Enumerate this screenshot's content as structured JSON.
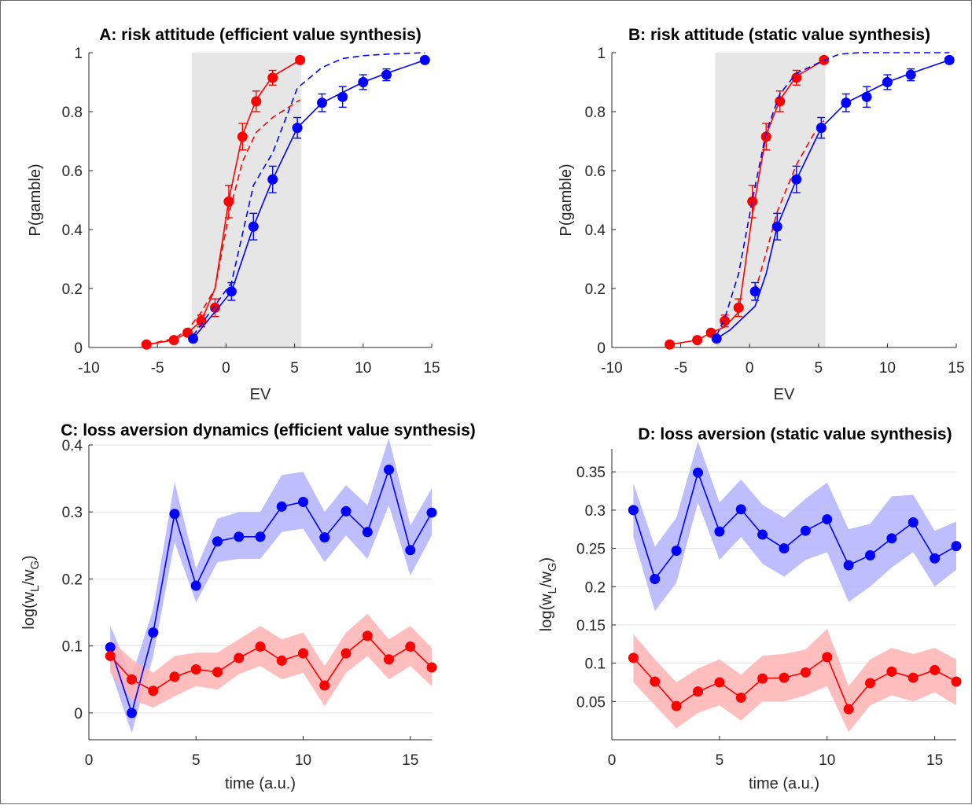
{
  "chart_data": [
    {
      "type": "line",
      "title": "A: risk attitude (efficient value synthesis)",
      "xlabel": "EV",
      "ylabel": "P(gamble)",
      "xlim": [
        -10,
        15
      ],
      "ylim": [
        0,
        1
      ],
      "xticks": [
        "-10",
        "-5",
        "0",
        "5",
        "10",
        "15"
      ],
      "yticks": [
        "0",
        "0.2",
        "0.4",
        "0.6",
        "0.8",
        "1"
      ],
      "shaded_region_x": [
        -2.5,
        5.5
      ],
      "colors": {
        "red": "#ff0000",
        "blue": "#0000ff",
        "shade": "#e6e6e6"
      },
      "series": [
        {
          "color": "red",
          "style": "data",
          "x": [
            -5.8,
            -3.8,
            -2.8,
            -1.8,
            -0.8,
            0.2,
            1.2,
            2.2,
            3.4,
            5.4
          ],
          "y": [
            0.01,
            0.025,
            0.05,
            0.09,
            0.135,
            0.495,
            0.715,
            0.835,
            0.915,
            0.975
          ],
          "err": [
            0,
            0,
            0.01,
            0.02,
            0.03,
            0.055,
            0.045,
            0.035,
            0.025,
            0.01
          ]
        },
        {
          "color": "red",
          "style": "solid",
          "x": [
            -5.8,
            -3.8,
            -2.8,
            -1.8,
            -0.8,
            -0.3,
            0.2,
            1.2,
            2.2,
            3.4,
            5.4
          ],
          "y": [
            0.01,
            0.025,
            0.05,
            0.09,
            0.2,
            0.35,
            0.5,
            0.72,
            0.84,
            0.92,
            0.975
          ]
        },
        {
          "color": "red",
          "style": "dashed",
          "x": [
            -5.8,
            -3.8,
            -2.8,
            -1.8,
            -0.8,
            0.2,
            1.2,
            2.2,
            3.4,
            5.4
          ],
          "y": [
            0.01,
            0.03,
            0.06,
            0.12,
            0.2,
            0.45,
            0.63,
            0.73,
            0.78,
            0.84
          ]
        },
        {
          "color": "blue",
          "style": "data",
          "x": [
            -2.4,
            0.4,
            2.0,
            3.4,
            5.2,
            7.0,
            8.5,
            10.0,
            11.7,
            14.5
          ],
          "y": [
            0.03,
            0.19,
            0.41,
            0.57,
            0.745,
            0.83,
            0.85,
            0.9,
            0.925,
            0.975
          ],
          "err": [
            0,
            0.03,
            0.045,
            0.045,
            0.035,
            0.03,
            0.035,
            0.025,
            0.02,
            0.01
          ]
        },
        {
          "color": "blue",
          "style": "solid",
          "x": [
            -2.4,
            0.4,
            2.0,
            3.4,
            5.2,
            7.0,
            8.5,
            10.0,
            11.7,
            14.5
          ],
          "y": [
            0.03,
            0.19,
            0.41,
            0.57,
            0.745,
            0.83,
            0.865,
            0.9,
            0.93,
            0.975
          ]
        },
        {
          "color": "blue",
          "style": "dashed",
          "x": [
            -2.4,
            0.4,
            2.0,
            3.4,
            5.2,
            7.0,
            8.5,
            10.0,
            11.7,
            14.5
          ],
          "y": [
            0.04,
            0.22,
            0.55,
            0.66,
            0.88,
            0.95,
            0.98,
            0.99,
            0.995,
            1.0
          ]
        }
      ]
    },
    {
      "type": "line",
      "title": "B: risk attitude (static value synthesis)",
      "xlabel": "EV",
      "ylabel": "P(gamble)",
      "xlim": [
        -10,
        15
      ],
      "ylim": [
        0,
        1
      ],
      "xticks": [
        "-10",
        "-5",
        "0",
        "5",
        "10",
        "15"
      ],
      "yticks": [
        "0",
        "0.2",
        "0.4",
        "0.6",
        "0.8",
        "1"
      ],
      "shaded_region_x": [
        -2.5,
        5.5
      ],
      "colors": {
        "red": "#ff0000",
        "blue": "#0000ff",
        "shade": "#e6e6e6"
      },
      "series": [
        {
          "color": "red",
          "style": "data",
          "x": [
            -5.8,
            -3.8,
            -2.8,
            -1.8,
            -0.8,
            0.2,
            1.2,
            2.2,
            3.4,
            5.4
          ],
          "y": [
            0.01,
            0.025,
            0.05,
            0.09,
            0.135,
            0.495,
            0.715,
            0.835,
            0.915,
            0.975
          ],
          "err": [
            0,
            0,
            0.01,
            0.02,
            0.03,
            0.055,
            0.045,
            0.035,
            0.025,
            0.01
          ]
        },
        {
          "color": "red",
          "style": "solid",
          "x": [
            -5.8,
            -3.8,
            -2.8,
            -1.8,
            -0.8,
            0.2,
            1.2,
            2.2,
            3.4,
            5.4
          ],
          "y": [
            0.01,
            0.025,
            0.05,
            0.07,
            0.12,
            0.45,
            0.72,
            0.84,
            0.92,
            0.975
          ]
        },
        {
          "color": "red",
          "style": "dashed",
          "x": [
            0.4,
            1.2,
            2.0,
            3.4,
            4.6,
            5.4
          ],
          "y": [
            0.19,
            0.32,
            0.46,
            0.62,
            0.72,
            0.77
          ]
        },
        {
          "color": "blue",
          "style": "data",
          "x": [
            -2.4,
            0.4,
            2.0,
            3.4,
            5.2,
            7.0,
            8.5,
            10.0,
            11.7,
            14.5
          ],
          "y": [
            0.03,
            0.19,
            0.41,
            0.57,
            0.745,
            0.83,
            0.85,
            0.9,
            0.925,
            0.975
          ],
          "err": [
            0,
            0.03,
            0.045,
            0.045,
            0.035,
            0.03,
            0.035,
            0.025,
            0.02,
            0.01
          ]
        },
        {
          "color": "blue",
          "style": "solid",
          "x": [
            -2.4,
            -1.4,
            0.4,
            1.2,
            2.0,
            3.4,
            5.2,
            7.0,
            8.5,
            10.0,
            11.7,
            14.5
          ],
          "y": [
            0.03,
            0.06,
            0.14,
            0.25,
            0.41,
            0.57,
            0.745,
            0.83,
            0.865,
            0.9,
            0.93,
            0.975
          ]
        },
        {
          "color": "blue",
          "style": "dashed",
          "x": [
            -2.4,
            -1.8,
            -0.8,
            0.2,
            1.2,
            2.2,
            3.4,
            5.2,
            6.5,
            8.0,
            14.5
          ],
          "y": [
            0.04,
            0.1,
            0.25,
            0.5,
            0.73,
            0.86,
            0.93,
            0.97,
            0.995,
            1.0,
            1.0
          ]
        }
      ]
    },
    {
      "type": "line",
      "title": "C: loss aversion dynamics (efficient value synthesis)",
      "xlabel": "time (a.u.)",
      "ylabel": "log(w_L/w_G)",
      "ylabel_parts": {
        "prefix": "log(w",
        "sub1": "L",
        "mid": "/w",
        "sub2": "G",
        "suffix": ")"
      },
      "xlim": [
        0,
        16
      ],
      "ylim": [
        -0.04,
        0.4
      ],
      "xticks": [
        "0",
        "5",
        "10",
        "15"
      ],
      "yticks": [
        "0",
        "0.1",
        "0.2",
        "0.3",
        "0.4"
      ],
      "grid": "y",
      "colors": {
        "red": "#ff0000",
        "blue": "#0000ff",
        "red_band": "#ffb3b3",
        "blue_band": "#b3b3ff"
      },
      "series": [
        {
          "color": "blue",
          "x": [
            1,
            2,
            3,
            4,
            5,
            6,
            7,
            8,
            9,
            10,
            11,
            12,
            13,
            14,
            15,
            16
          ],
          "y": [
            0.098,
            0.0,
            0.12,
            0.297,
            0.19,
            0.256,
            0.263,
            0.263,
            0.308,
            0.315,
            0.262,
            0.301,
            0.27,
            0.363,
            0.243,
            0.299
          ],
          "lower": [
            0.065,
            -0.03,
            0.085,
            0.255,
            0.165,
            0.225,
            0.23,
            0.23,
            0.27,
            0.275,
            0.225,
            0.265,
            0.23,
            0.31,
            0.205,
            0.265
          ],
          "upper": [
            0.13,
            0.055,
            0.155,
            0.345,
            0.215,
            0.29,
            0.3,
            0.3,
            0.355,
            0.36,
            0.3,
            0.34,
            0.31,
            0.41,
            0.28,
            0.335
          ]
        },
        {
          "color": "red",
          "x": [
            1,
            2,
            3,
            4,
            5,
            6,
            7,
            8,
            9,
            10,
            11,
            12,
            13,
            14,
            15,
            16
          ],
          "y": [
            0.085,
            0.05,
            0.033,
            0.054,
            0.065,
            0.061,
            0.082,
            0.099,
            0.078,
            0.089,
            0.041,
            0.089,
            0.115,
            0.08,
            0.099,
            0.068
          ],
          "lower": [
            0.06,
            0.02,
            0.008,
            0.025,
            0.04,
            0.035,
            0.058,
            0.07,
            0.05,
            0.06,
            0.01,
            0.06,
            0.085,
            0.05,
            0.07,
            0.04
          ],
          "upper": [
            0.11,
            0.08,
            0.06,
            0.085,
            0.09,
            0.09,
            0.11,
            0.13,
            0.11,
            0.12,
            0.07,
            0.12,
            0.148,
            0.11,
            0.13,
            0.097
          ]
        }
      ]
    },
    {
      "type": "line",
      "title": "D: loss aversion (static value synthesis)",
      "xlabel": "time (a.u.)",
      "ylabel": "log(w_L/w_G)",
      "ylabel_parts": {
        "prefix": "log(w",
        "sub1": "L",
        "mid": "/w",
        "sub2": "G",
        "suffix": ")"
      },
      "xlim": [
        0,
        16
      ],
      "ylim": [
        0,
        0.38
      ],
      "xticks": [
        "0",
        "5",
        "10",
        "15"
      ],
      "yticks": [
        "0.05",
        "0.1",
        "0.15",
        "0.2",
        "0.25",
        "0.3",
        "0.35"
      ],
      "grid": "y",
      "colors": {
        "red": "#ff0000",
        "blue": "#0000ff",
        "red_band": "#ffb3b3",
        "blue_band": "#b3b3ff"
      },
      "series": [
        {
          "color": "blue",
          "x": [
            1,
            2,
            3,
            4,
            5,
            6,
            7,
            8,
            9,
            10,
            11,
            12,
            13,
            14,
            15,
            16
          ],
          "y": [
            0.3,
            0.21,
            0.247,
            0.349,
            0.272,
            0.301,
            0.268,
            0.25,
            0.273,
            0.288,
            0.228,
            0.241,
            0.263,
            0.284,
            0.237,
            0.253
          ],
          "lower": [
            0.265,
            0.168,
            0.205,
            0.31,
            0.235,
            0.265,
            0.23,
            0.213,
            0.235,
            0.245,
            0.18,
            0.2,
            0.225,
            0.245,
            0.2,
            0.222
          ],
          "upper": [
            0.335,
            0.252,
            0.29,
            0.39,
            0.31,
            0.34,
            0.307,
            0.29,
            0.315,
            0.336,
            0.275,
            0.282,
            0.318,
            0.32,
            0.273,
            0.285
          ]
        },
        {
          "color": "red",
          "x": [
            1,
            2,
            3,
            4,
            5,
            6,
            7,
            8,
            9,
            10,
            11,
            12,
            13,
            14,
            15,
            16
          ],
          "y": [
            0.107,
            0.076,
            0.044,
            0.063,
            0.075,
            0.055,
            0.08,
            0.081,
            0.088,
            0.108,
            0.04,
            0.074,
            0.089,
            0.081,
            0.091,
            0.076
          ],
          "lower": [
            0.075,
            0.045,
            0.015,
            0.035,
            0.045,
            0.025,
            0.05,
            0.05,
            0.058,
            0.07,
            0.01,
            0.045,
            0.058,
            0.05,
            0.062,
            0.045
          ],
          "upper": [
            0.138,
            0.105,
            0.075,
            0.093,
            0.105,
            0.085,
            0.11,
            0.112,
            0.118,
            0.145,
            0.07,
            0.105,
            0.12,
            0.112,
            0.12,
            0.105
          ]
        }
      ]
    }
  ]
}
